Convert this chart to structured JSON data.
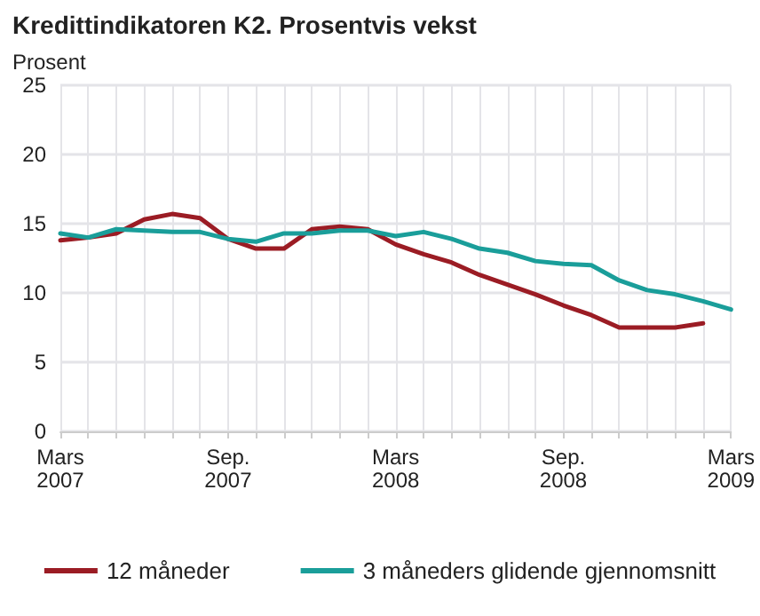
{
  "chart_data": {
    "type": "line",
    "title": "Kredittindikatoren K2. Prosentvis vekst",
    "ylabel": "Prosent",
    "categories": [
      "Mars 2007",
      null,
      null,
      null,
      null,
      null,
      "Sep. 2007",
      null,
      null,
      null,
      null,
      null,
      "Mars 2008",
      null,
      null,
      null,
      null,
      null,
      "Sep. 2008",
      null,
      null,
      null,
      null,
      null,
      "Mars 2009"
    ],
    "series": [
      {
        "name": "12 måneder",
        "color": "#9b1c24",
        "values": [
          13.8,
          14.0,
          14.3,
          15.3,
          15.7,
          15.4,
          13.9,
          13.2,
          13.2,
          14.6,
          14.8,
          14.6,
          13.5,
          12.8,
          12.2,
          11.3,
          10.6,
          9.9,
          9.1,
          8.4,
          7.5,
          7.5,
          7.5,
          7.8,
          null
        ]
      },
      {
        "name": "3 måneders glidende gjennomsnitt",
        "color": "#1a9e9a",
        "values": [
          14.3,
          14.0,
          14.6,
          14.5,
          14.4,
          14.4,
          13.9,
          13.7,
          14.3,
          14.3,
          14.5,
          14.5,
          14.1,
          14.4,
          13.9,
          13.2,
          12.9,
          12.3,
          12.1,
          12.0,
          10.9,
          10.2,
          9.9,
          9.4,
          8.8
        ]
      }
    ],
    "ylim": [
      0,
      25
    ],
    "yticks": [
      0,
      5,
      10,
      15,
      20,
      25
    ],
    "grid": true,
    "legend": "bottom",
    "marker": "none",
    "line_style": "solid"
  }
}
